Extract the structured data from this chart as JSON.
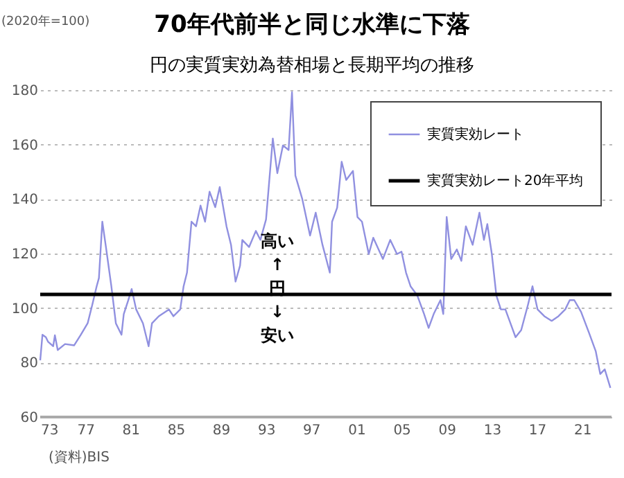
{
  "chart_data": {
    "type": "line",
    "title": "70年代前半と同じ水準に下落",
    "subtitle": "円の実質実効為替相場と長期平均の推移",
    "ylabel": "(2020年=100)",
    "annotations": [
      "高い\n↑\n円\n↓\n安い",
      "(資料)BIS"
    ],
    "series": [
      {
        "name": "実質実効レート",
        "color": "#9090e0",
        "x": [
          1973.0,
          1973.2,
          1973.5,
          1973.7,
          1974.15,
          1974.3,
          1974.55,
          1975.2,
          1976.0,
          1976.6,
          1977.2,
          1977.6,
          1978.0,
          1978.2,
          1978.5,
          1978.8,
          1979.3,
          1979.7,
          1980.2,
          1980.4,
          1980.8,
          1981.1,
          1981.5,
          1982.1,
          1982.6,
          1982.9,
          1983.5,
          1984.4,
          1984.8,
          1985.4,
          1985.7,
          1986.0,
          1986.4,
          1986.8,
          1987.2,
          1987.6,
          1988.0,
          1988.5,
          1988.9,
          1989.5,
          1989.9,
          1990.3,
          1990.7,
          1990.9,
          1991.5,
          1992.1,
          1992.5,
          1993.0,
          1993.6,
          1994.0,
          1994.5,
          1995.0,
          1995.3,
          1995.6,
          1996.2,
          1996.9,
          1997.4,
          1998.0,
          1998.65,
          1998.85,
          1999.3,
          1999.7,
          2000.1,
          2000.7,
          2001.1,
          2001.5,
          2002.1,
          2002.5,
          2003.35,
          2004.0,
          2004.6,
          2005.0,
          2005.4,
          2005.8,
          2006.4,
          2007.0,
          2007.4,
          2007.85,
          2008.45,
          2008.7,
          2009.0,
          2009.4,
          2009.9,
          2010.3,
          2010.7,
          2011.3,
          2011.9,
          2012.3,
          2012.6,
          2013.0,
          2013.4,
          2013.8,
          2014.2,
          2014.8,
          2015.1,
          2015.6,
          2016.2,
          2016.6,
          2017.05,
          2017.65,
          2018.3,
          2018.9,
          2019.5,
          2019.9,
          2020.3,
          2020.9,
          2021.6,
          2022.2,
          2022.6,
          2023.0,
          2023.5
        ],
        "values": [
          80.8,
          90.2,
          89.3,
          87.6,
          86,
          90,
          84.6,
          86.8,
          86.3,
          90.2,
          94.4,
          101,
          108,
          111,
          131.7,
          123,
          108,
          94.4,
          90.2,
          97.8,
          102.9,
          107,
          99.5,
          94.4,
          86,
          94.4,
          97,
          99.5,
          97,
          99.5,
          108,
          113,
          131.7,
          130,
          137.6,
          131.7,
          142.7,
          137,
          144.4,
          130,
          123.2,
          109.7,
          115.6,
          125,
          122.4,
          128.3,
          125,
          132.5,
          162.2,
          149.5,
          159.7,
          158,
          179.2,
          148.6,
          140.2,
          126.6,
          135,
          123.2,
          113,
          131.7,
          136.8,
          153.7,
          147,
          150.3,
          133.4,
          131.7,
          119.8,
          125.8,
          118,
          125,
          119.8,
          120.7,
          113,
          108,
          104.6,
          97.8,
          92.7,
          97.8,
          102.9,
          97.8,
          133.4,
          118,
          121.5,
          117.3,
          130,
          123.2,
          135,
          125,
          130.8,
          119.8,
          104.6,
          99.5,
          99.5,
          92.7,
          89.3,
          91.9,
          101.2,
          108,
          99.5,
          97,
          95.3,
          97,
          99.5,
          102.9,
          102.9,
          98.6,
          91,
          84.2,
          75.8,
          77.5,
          70.7
        ]
      }
    ],
    "ref_lines": [
      {
        "axis": "y",
        "value": 105,
        "label": "実質実効レート20年平均",
        "color": "#000000"
      }
    ],
    "xlim": [
      1973,
      2023.6
    ],
    "xticks": [
      {
        "value": 1973,
        "label": "73"
      },
      {
        "value": 1977,
        "label": "77"
      },
      {
        "value": 1981,
        "label": "81"
      },
      {
        "value": 1985,
        "label": "85"
      },
      {
        "value": 1989,
        "label": "89"
      },
      {
        "value": 1993,
        "label": "93"
      },
      {
        "value": 1997,
        "label": "97"
      },
      {
        "value": 2001,
        "label": "01"
      },
      {
        "value": 2005,
        "label": "05"
      },
      {
        "value": 2009,
        "label": "09"
      },
      {
        "value": 2013,
        "label": "13"
      },
      {
        "value": 2017,
        "label": "17"
      },
      {
        "value": 2021,
        "label": "21"
      }
    ],
    "ylim": [
      60,
      180
    ],
    "yticks": [
      60,
      80,
      100,
      120,
      140,
      160,
      180
    ],
    "grid": "y",
    "legend": "top right",
    "marker": "none",
    "line_style": "solid"
  }
}
